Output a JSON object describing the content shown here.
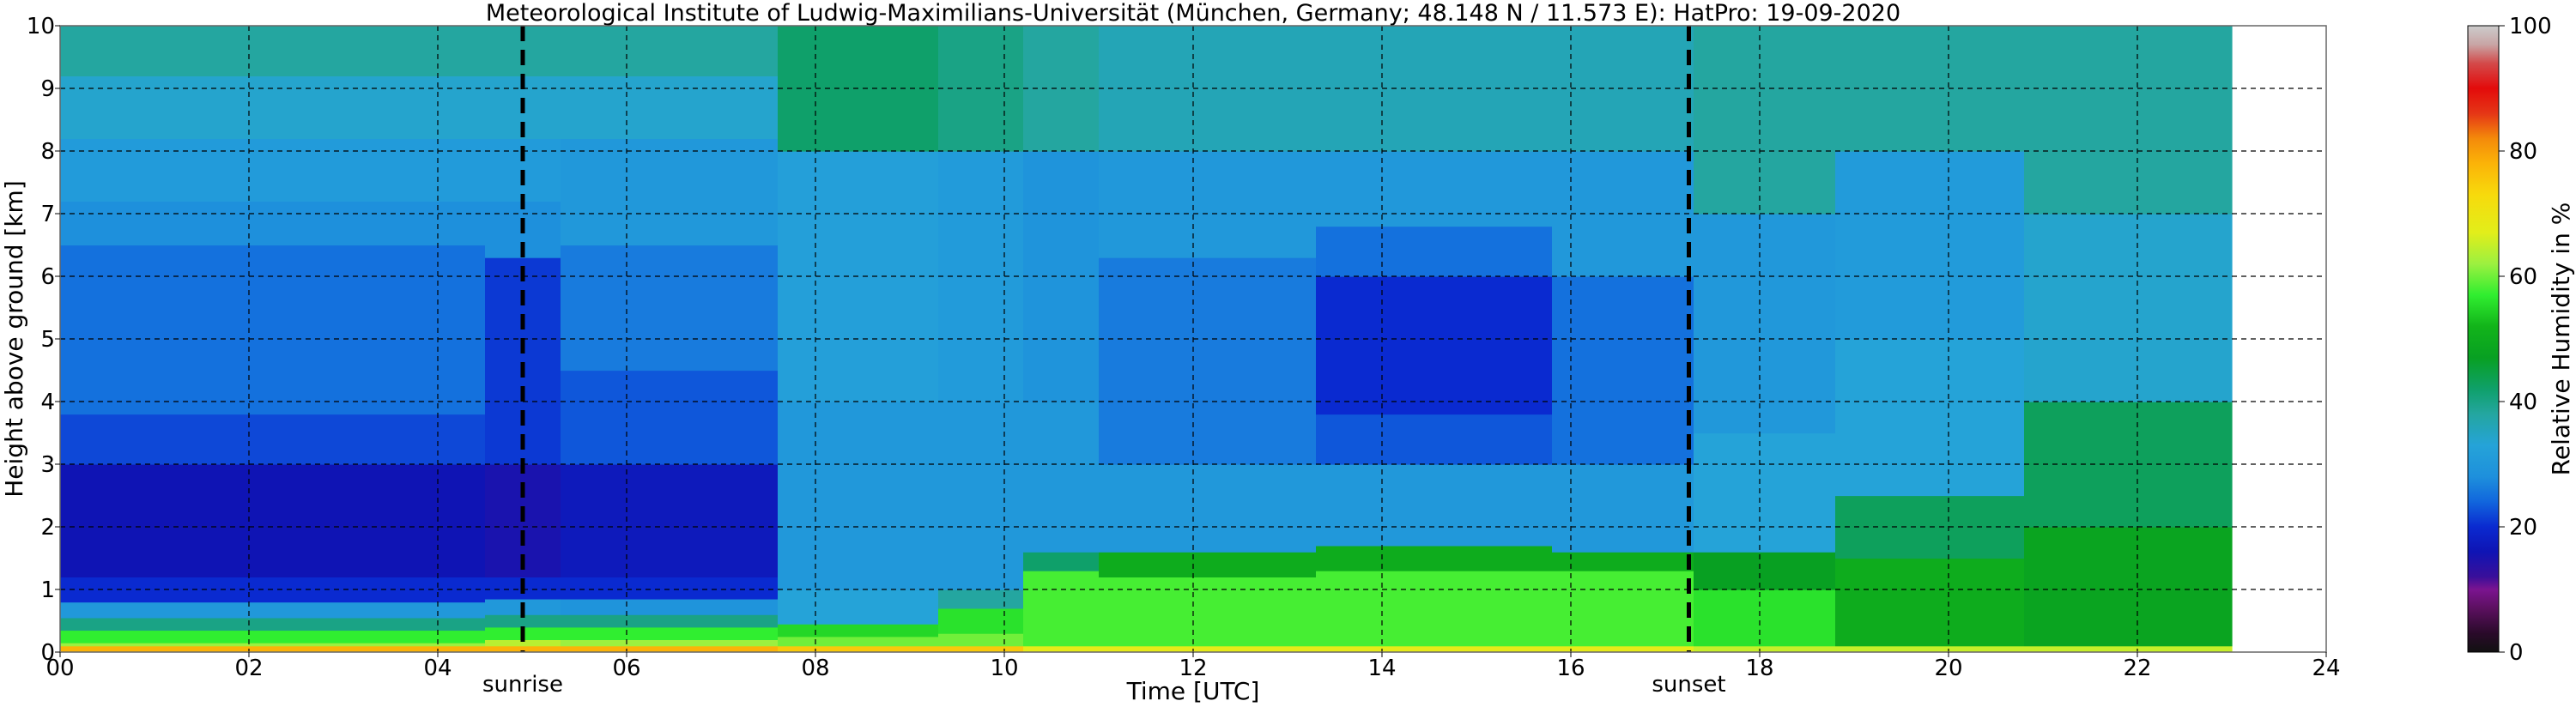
{
  "chart_data": {
    "type": "heatmap",
    "title": "Meteorological Institute of Ludwig-Maximilians-Universität (München, Germany; 48.148 N / 11.573 E):    HatPro: 19-09-2020",
    "xlabel": "Time [UTC]",
    "ylabel": "Height above ground [km]",
    "xlim": [
      0,
      24
    ],
    "ylim": [
      0,
      10
    ],
    "x_ticks": [
      "00",
      "02",
      "04",
      "06",
      "08",
      "10",
      "12",
      "14",
      "16",
      "18",
      "20",
      "22",
      "24"
    ],
    "y_ticks": [
      "0",
      "1",
      "2",
      "3",
      "4",
      "5",
      "6",
      "7",
      "8",
      "9",
      "10"
    ],
    "data_extent_hours": [
      0,
      23
    ],
    "grid": true,
    "grid_style": "dashed",
    "events": [
      {
        "label": "sunrise",
        "time": 4.9
      },
      {
        "label": "sunset",
        "time": 17.25
      }
    ],
    "colorbar": {
      "label": "Relative Humidity in %",
      "range": [
        0,
        100
      ],
      "ticks": [
        "0",
        "20",
        "40",
        "60",
        "80",
        "100"
      ],
      "stops": [
        {
          "value": 0,
          "color": "#111111"
        },
        {
          "value": 3,
          "color": "#2a0a2a"
        },
        {
          "value": 7,
          "color": "#5c1060"
        },
        {
          "value": 10,
          "color": "#7b1490"
        },
        {
          "value": 12,
          "color": "#3a0f9a"
        },
        {
          "value": 16,
          "color": "#0f14b4"
        },
        {
          "value": 20,
          "color": "#0a2ad0"
        },
        {
          "value": 24,
          "color": "#1166dd"
        },
        {
          "value": 28,
          "color": "#1e90dc"
        },
        {
          "value": 33,
          "color": "#25a3d8"
        },
        {
          "value": 38,
          "color": "#24a6a0"
        },
        {
          "value": 42,
          "color": "#0fa06a"
        },
        {
          "value": 47,
          "color": "#08a022"
        },
        {
          "value": 52,
          "color": "#12b41a"
        },
        {
          "value": 57,
          "color": "#30ee30"
        },
        {
          "value": 62,
          "color": "#9cf040"
        },
        {
          "value": 67,
          "color": "#e2ee1a"
        },
        {
          "value": 73,
          "color": "#f7da0c"
        },
        {
          "value": 78,
          "color": "#fbb308"
        },
        {
          "value": 82,
          "color": "#f48a0a"
        },
        {
          "value": 86,
          "color": "#e53616"
        },
        {
          "value": 90,
          "color": "#e30b0b"
        },
        {
          "value": 94,
          "color": "#d34a4a"
        },
        {
          "value": 97,
          "color": "#c8a5a5"
        },
        {
          "value": 100,
          "color": "#cccccc"
        }
      ]
    },
    "bands": [
      {
        "start": 0,
        "end": 4.5,
        "layers": [
          [
            0,
            0.1,
            78
          ],
          [
            0.1,
            0.15,
            62
          ],
          [
            0.15,
            0.35,
            57
          ],
          [
            0.35,
            0.55,
            40
          ],
          [
            0.55,
            0.8,
            30
          ],
          [
            0.8,
            1.2,
            20
          ],
          [
            1.2,
            3.0,
            16
          ],
          [
            3.0,
            3.8,
            22
          ],
          [
            3.8,
            6.5,
            25
          ],
          [
            6.5,
            7.2,
            28
          ],
          [
            7.2,
            8.2,
            31
          ],
          [
            8.2,
            9.2,
            34
          ],
          [
            9.2,
            10,
            38
          ]
        ]
      },
      {
        "start": 4.5,
        "end": 5.3,
        "layers": [
          [
            0,
            0.1,
            78
          ],
          [
            0.1,
            0.2,
            64
          ],
          [
            0.2,
            0.4,
            57
          ],
          [
            0.4,
            0.6,
            40
          ],
          [
            0.6,
            0.85,
            30
          ],
          [
            0.85,
            1.2,
            20
          ],
          [
            1.2,
            3.0,
            15
          ],
          [
            3.0,
            6.3,
            21
          ],
          [
            6.3,
            7.2,
            28
          ],
          [
            7.2,
            8.2,
            31
          ],
          [
            8.2,
            9.2,
            34
          ],
          [
            9.2,
            10,
            38
          ]
        ]
      },
      {
        "start": 5.3,
        "end": 7.6,
        "layers": [
          [
            0,
            0.1,
            78
          ],
          [
            0.1,
            0.2,
            62
          ],
          [
            0.2,
            0.4,
            57
          ],
          [
            0.4,
            0.6,
            40
          ],
          [
            0.6,
            0.85,
            29
          ],
          [
            0.85,
            1.2,
            20
          ],
          [
            1.2,
            3.0,
            17
          ],
          [
            3.0,
            4.5,
            23
          ],
          [
            4.5,
            6.5,
            26
          ],
          [
            6.5,
            8.2,
            30
          ],
          [
            8.2,
            9.2,
            34
          ],
          [
            9.2,
            10,
            38
          ]
        ]
      },
      {
        "start": 7.6,
        "end": 9.3,
        "layers": [
          [
            0,
            0.1,
            75
          ],
          [
            0.1,
            0.25,
            60
          ],
          [
            0.25,
            0.45,
            55
          ],
          [
            0.45,
            1.0,
            33
          ],
          [
            1.0,
            4.0,
            30
          ],
          [
            4.0,
            8.0,
            32
          ],
          [
            8.0,
            10,
            42
          ]
        ]
      },
      {
        "start": 9.3,
        "end": 10.2,
        "layers": [
          [
            0,
            0.1,
            75
          ],
          [
            0.1,
            0.3,
            60
          ],
          [
            0.3,
            0.7,
            56
          ],
          [
            0.7,
            1.0,
            38
          ],
          [
            1.0,
            4.0,
            30
          ],
          [
            4.0,
            8.0,
            31
          ],
          [
            8.0,
            10,
            40
          ]
        ]
      },
      {
        "start": 10.2,
        "end": 11.0,
        "layers": [
          [
            0,
            0.1,
            68
          ],
          [
            0.1,
            1.3,
            58
          ],
          [
            1.3,
            1.6,
            42
          ],
          [
            1.6,
            4.0,
            30
          ],
          [
            4.0,
            8.0,
            29
          ],
          [
            8.0,
            10,
            38
          ]
        ]
      },
      {
        "start": 11.0,
        "end": 13.3,
        "layers": [
          [
            0,
            0.1,
            68
          ],
          [
            0.1,
            1.2,
            58
          ],
          [
            1.2,
            1.6,
            50
          ],
          [
            1.6,
            3.0,
            30
          ],
          [
            3.0,
            6.3,
            26
          ],
          [
            6.3,
            8.0,
            30
          ],
          [
            8.0,
            10,
            36
          ]
        ]
      },
      {
        "start": 13.3,
        "end": 15.8,
        "layers": [
          [
            0,
            0.1,
            68
          ],
          [
            0.1,
            1.3,
            58
          ],
          [
            1.3,
            1.7,
            50
          ],
          [
            1.7,
            3.0,
            30
          ],
          [
            3.0,
            3.8,
            23
          ],
          [
            3.8,
            6.0,
            20
          ],
          [
            6.0,
            6.8,
            25
          ],
          [
            6.8,
            8.0,
            30
          ],
          [
            8.0,
            10,
            36
          ]
        ]
      },
      {
        "start": 15.8,
        "end": 17.3,
        "layers": [
          [
            0,
            0.1,
            68
          ],
          [
            0.1,
            1.3,
            58
          ],
          [
            1.3,
            1.6,
            50
          ],
          [
            1.6,
            3.0,
            30
          ],
          [
            3.0,
            6.0,
            25
          ],
          [
            6.0,
            8.0,
            30
          ],
          [
            8.0,
            10,
            36
          ]
        ]
      },
      {
        "start": 17.3,
        "end": 18.8,
        "layers": [
          [
            0,
            0.1,
            65
          ],
          [
            0.1,
            1.0,
            56
          ],
          [
            1.0,
            1.6,
            47
          ],
          [
            1.6,
            3.5,
            33
          ],
          [
            3.5,
            7.0,
            30
          ],
          [
            7.0,
            10,
            38
          ]
        ]
      },
      {
        "start": 18.8,
        "end": 20.8,
        "layers": [
          [
            0,
            0.1,
            65
          ],
          [
            0.1,
            1.5,
            50
          ],
          [
            1.5,
            2.5,
            43
          ],
          [
            2.5,
            5.0,
            33
          ],
          [
            5.0,
            8.0,
            31
          ],
          [
            8.0,
            10,
            38
          ]
        ]
      },
      {
        "start": 20.8,
        "end": 23.0,
        "layers": [
          [
            0,
            0.1,
            65
          ],
          [
            0.1,
            2.0,
            48
          ],
          [
            2.0,
            4.0,
            43
          ],
          [
            4.0,
            7.0,
            34
          ],
          [
            7.0,
            10,
            38
          ]
        ]
      }
    ]
  }
}
